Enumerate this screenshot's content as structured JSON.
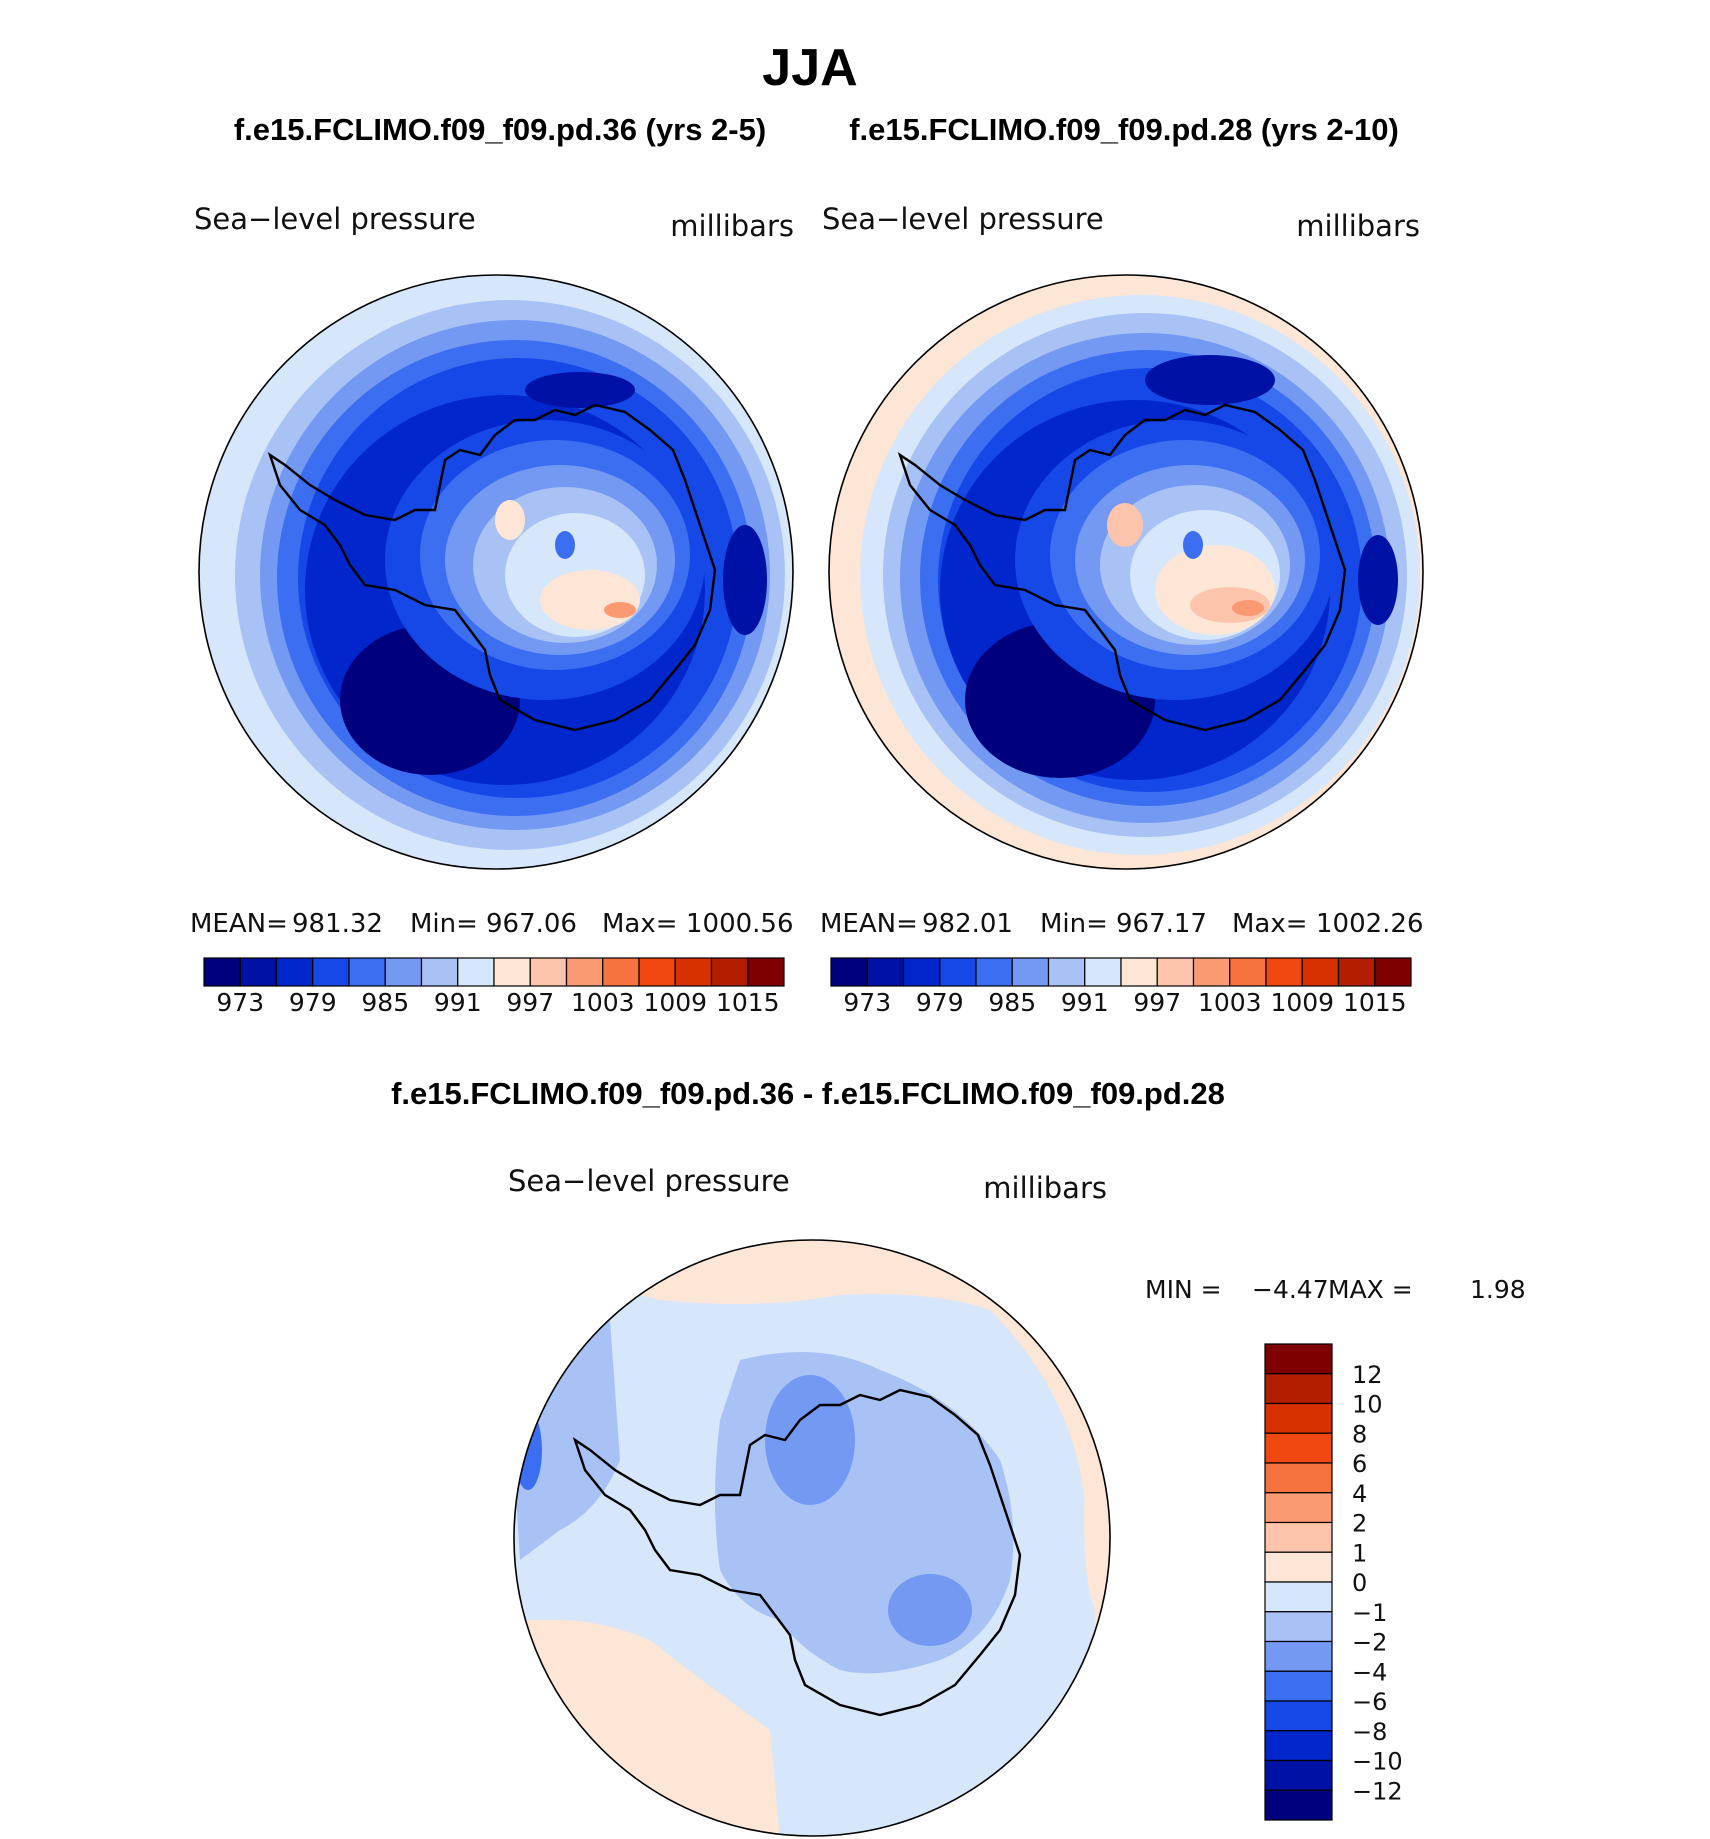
{
  "season": "JJA",
  "panels": [
    {
      "id": "case1",
      "case_title": "f.e15.FCLIMO.f09_f09.pd.36 (yrs 2-5)",
      "variable": "Sea−level pressure",
      "units": "millibars",
      "stats": {
        "mean_label": "MEAN=",
        "mean": "981.32",
        "min_label": "Min=",
        "min": "967.06",
        "max_label": "Max=",
        "max": "1000.56"
      }
    },
    {
      "id": "case2",
      "case_title": "f.e15.FCLIMO.f09_f09.pd.28 (yrs 2-10)",
      "variable": "Sea−level pressure",
      "units": "millibars",
      "stats": {
        "mean_label": "MEAN=",
        "mean": "982.01",
        "min_label": "Min=",
        "min": "967.17",
        "max_label": "Max=",
        "max": "1002.26"
      }
    }
  ],
  "abs_colorbar": {
    "colors": [
      "#00007f",
      "#0012a6",
      "#0026cc",
      "#1648e8",
      "#3c6ef2",
      "#7499f2",
      "#a8c2f6",
      "#d6e6fb",
      "#fde6d6",
      "#fcc5ab",
      "#f99a73",
      "#f6733f",
      "#f04810",
      "#d83100",
      "#b21e00",
      "#7f0000"
    ],
    "tick_labels": [
      "973",
      "979",
      "985",
      "991",
      "997",
      "1003",
      "1009",
      "1015"
    ]
  },
  "diff_panel": {
    "title": "f.e15.FCLIMO.f09_f09.pd.36 - f.e15.FCLIMO.f09_f09.pd.28",
    "variable": "Sea−level pressure",
    "units": "millibars",
    "min_label": "MIN =",
    "min": "−4.47",
    "max_label": "MAX =",
    "max": "1.98"
  },
  "diff_colorbar": {
    "colors_top_to_bottom": [
      "#7f0000",
      "#b21e00",
      "#d83100",
      "#f04810",
      "#f6733f",
      "#f99a73",
      "#fcc5ab",
      "#fde6d6",
      "#d6e6fb",
      "#a8c2f6",
      "#7499f2",
      "#3c6ef2",
      "#1648e8",
      "#0026cc",
      "#0012a6",
      "#00007f"
    ],
    "tick_labels": [
      "12",
      "10",
      "8",
      "6",
      "4",
      "2",
      "1",
      "0",
      "−1",
      "−2",
      "−4",
      "−6",
      "−8",
      "−10",
      "−12"
    ]
  }
}
